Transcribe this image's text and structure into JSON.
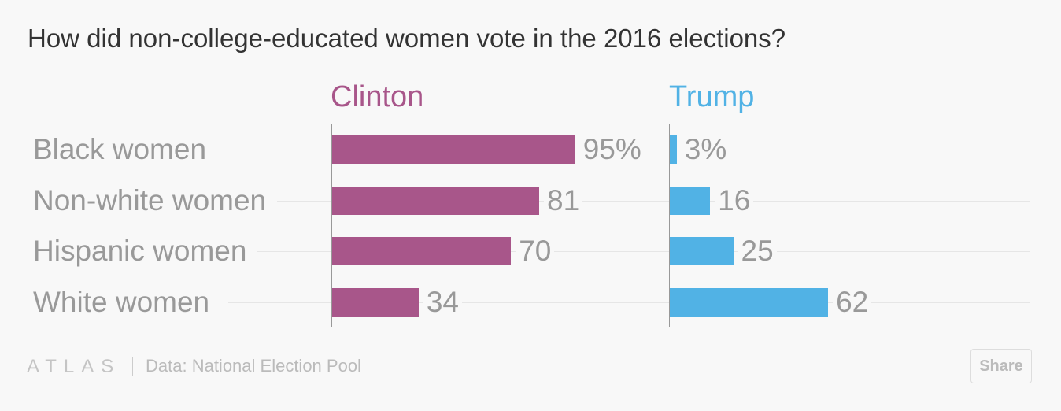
{
  "chart_data": {
    "type": "bar",
    "title": "How did non-college-educated women vote in the 2016 elections?",
    "categories": [
      "Black women",
      "Non-white women",
      "Hispanic women",
      "White women"
    ],
    "series": [
      {
        "name": "Clinton",
        "values": [
          95,
          81,
          70,
          34
        ],
        "labels": [
          "95%",
          "81",
          "70",
          "34"
        ],
        "color": "#a8568a"
      },
      {
        "name": "Trump",
        "values": [
          3,
          16,
          25,
          62
        ],
        "labels": [
          "3%",
          "16",
          "25",
          "62"
        ],
        "color": "#51b2e5"
      }
    ],
    "unit": "%",
    "grid": true
  },
  "footer": {
    "logo": "ATLAS",
    "source": "Data: National Election Pool",
    "share_label": "Share"
  }
}
